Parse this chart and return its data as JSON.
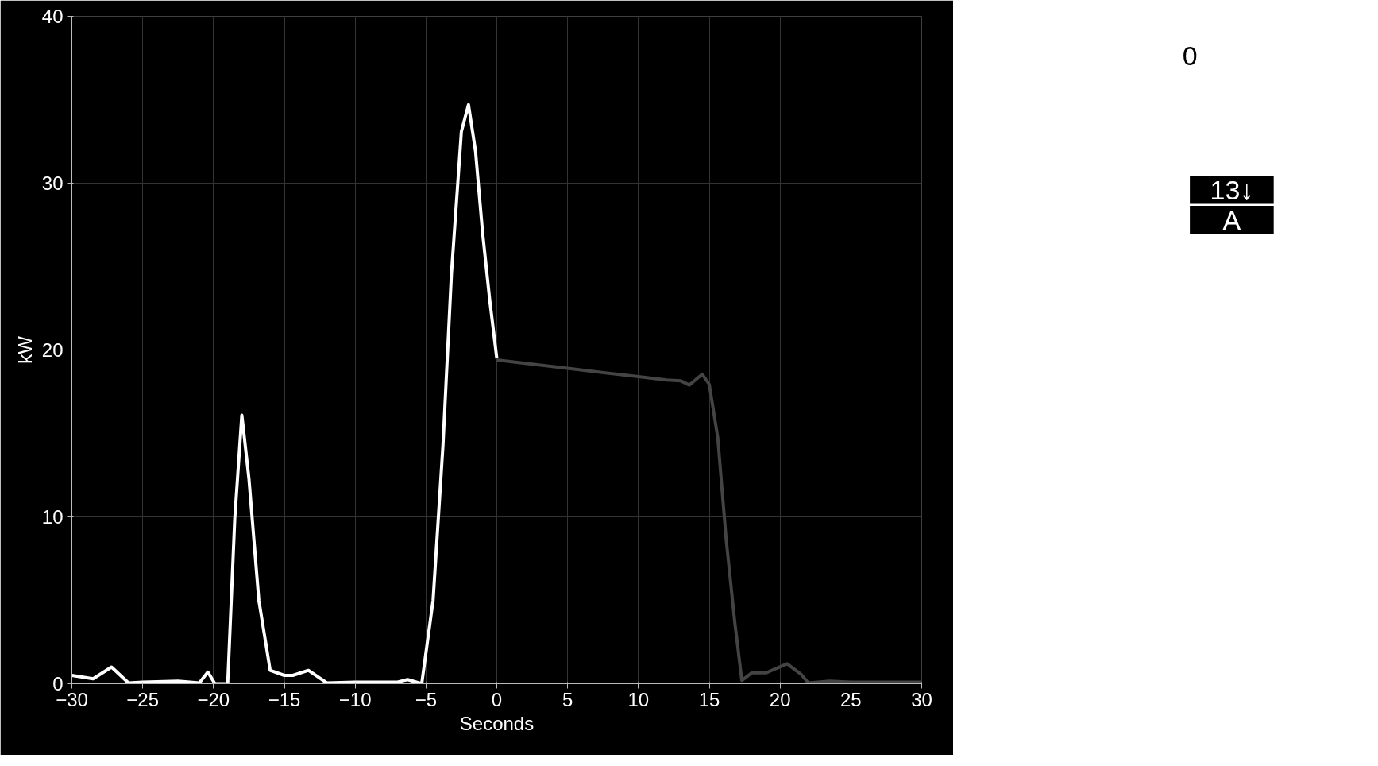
{
  "chart_data": [
    {
      "type": "line",
      "xlabel": "Seconds",
      "ylabel": "kW",
      "xlim": [
        -30,
        30
      ],
      "ylim": [
        0,
        40
      ],
      "xticks": [
        -30,
        -25,
        -20,
        -15,
        -10,
        -5,
        0,
        5,
        10,
        15,
        20,
        25,
        30
      ],
      "yticks": [
        0,
        10,
        20,
        30,
        40
      ],
      "grid": true,
      "series": [
        {
          "color": "#ffffff",
          "x": [
            -30,
            -28.5,
            -27.2,
            -26,
            -25,
            -22.5,
            -21,
            -20.4,
            -19.9,
            -19.5,
            -19,
            -18.5,
            -18,
            -17.5,
            -16.8,
            -16,
            -15,
            -14.4,
            -13.3,
            -12,
            -10,
            -7,
            -6.3,
            -5.3,
            -4.5,
            -3.8,
            -3.2,
            -2.5,
            -2,
            -1.5,
            -1,
            -0.5,
            0
          ],
          "values": [
            0.5,
            0.3,
            1.0,
            0.05,
            0.1,
            0.15,
            0.05,
            0.7,
            0,
            0,
            0,
            9.9,
            16.1,
            12.3,
            5,
            0.8,
            0.5,
            0.5,
            0.8,
            0.05,
            0.1,
            0.1,
            0.25,
            0,
            5,
            14.3,
            24.6,
            33.1,
            34.7,
            31.9,
            27,
            23,
            19.5
          ]
        },
        {
          "color": "#444444",
          "x": [
            0,
            5,
            10,
            12,
            13,
            13.6,
            14.5,
            15,
            15.6,
            16.2,
            16.8,
            17.3,
            18,
            19,
            20.5,
            21.5,
            22,
            23.5,
            25,
            30
          ],
          "values": [
            19.4,
            18.9,
            18.4,
            18.2,
            18.15,
            17.9,
            18.55,
            17.95,
            14.75,
            8.6,
            3.7,
            0.2,
            0.65,
            0.65,
            1.2,
            0.55,
            0.05,
            0.15,
            0.1,
            0.1
          ]
        }
      ]
    },
    {
      "type": "other",
      "annotations": [
        "0",
        "13↓",
        "A"
      ]
    }
  ]
}
